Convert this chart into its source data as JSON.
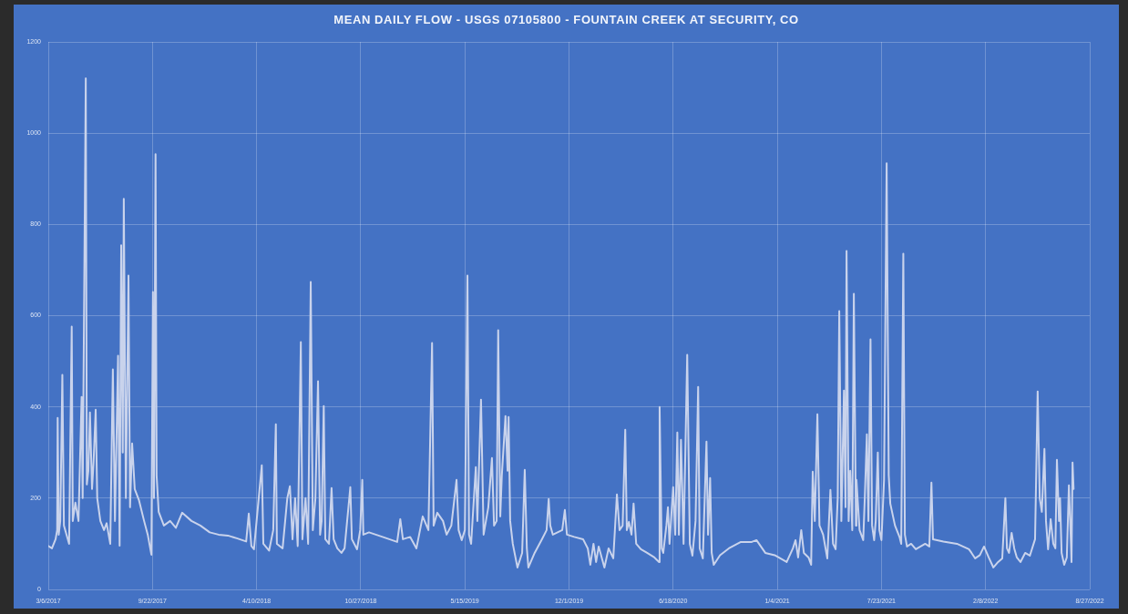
{
  "chart_data": {
    "type": "line",
    "title": "MEAN DAILY FLOW - USGS 07105800 - FOUNTAIN CREEK AT SECURITY, CO",
    "x": [
      "2017-03-06",
      "2017-03-13",
      "2017-03-20",
      "2017-03-23",
      "2017-03-24",
      "2017-03-26",
      "2017-03-29",
      "2017-04-02",
      "2017-04-05",
      "2017-04-10",
      "2017-04-15",
      "2017-04-20",
      "2017-04-22",
      "2017-04-27",
      "2017-05-03",
      "2017-05-09",
      "2017-05-11",
      "2017-05-17",
      "2017-05-19",
      "2017-05-22",
      "2017-05-25",
      "2017-05-29",
      "2017-06-01",
      "2017-06-05",
      "2017-06-08",
      "2017-06-14",
      "2017-06-21",
      "2017-06-26",
      "2017-07-03",
      "2017-07-08",
      "2017-07-12",
      "2017-07-18",
      "2017-07-21",
      "2017-07-24",
      "2017-07-27",
      "2017-07-29",
      "2017-08-02",
      "2017-08-07",
      "2017-08-10",
      "2017-08-14",
      "2017-08-19",
      "2017-08-27",
      "2017-09-06",
      "2017-09-13",
      "2017-09-20",
      "2017-09-23",
      "2017-09-25",
      "2017-09-28",
      "2017-09-30",
      "2017-10-04",
      "2017-10-14",
      "2017-10-26",
      "2017-11-06",
      "2017-11-18",
      "2017-12-06",
      "2017-12-23",
      "2018-01-10",
      "2018-01-27",
      "2018-02-14",
      "2018-03-03",
      "2018-03-21",
      "2018-03-26",
      "2018-03-31",
      "2018-04-05",
      "2018-04-20",
      "2018-04-23",
      "2018-05-04",
      "2018-05-12",
      "2018-05-17",
      "2018-05-19",
      "2018-05-30",
      "2018-06-08",
      "2018-06-13",
      "2018-06-18",
      "2018-06-23",
      "2018-06-28",
      "2018-07-04",
      "2018-07-07",
      "2018-07-13",
      "2018-07-18",
      "2018-07-23",
      "2018-07-27",
      "2018-08-01",
      "2018-08-06",
      "2018-08-10",
      "2018-08-13",
      "2018-08-17",
      "2018-08-20",
      "2018-08-27",
      "2018-09-01",
      "2018-09-05",
      "2018-09-12",
      "2018-09-20",
      "2018-09-26",
      "2018-10-07",
      "2018-10-10",
      "2018-10-20",
      "2018-10-26",
      "2018-10-30",
      "2018-11-01",
      "2018-11-12",
      "2018-12-08",
      "2019-01-05",
      "2019-01-11",
      "2019-01-16",
      "2019-01-30",
      "2019-02-11",
      "2019-02-23",
      "2019-03-06",
      "2019-03-13",
      "2019-03-16",
      "2019-03-23",
      "2019-04-03",
      "2019-04-10",
      "2019-04-19",
      "2019-04-29",
      "2019-05-03",
      "2019-05-09",
      "2019-05-15",
      "2019-05-20",
      "2019-05-23",
      "2019-05-27",
      "2019-06-05",
      "2019-06-08",
      "2019-06-15",
      "2019-06-20",
      "2019-06-29",
      "2019-07-06",
      "2019-07-10",
      "2019-07-15",
      "2019-07-18",
      "2019-07-22",
      "2019-07-25",
      "2019-08-01",
      "2019-08-05",
      "2019-08-07",
      "2019-08-10",
      "2019-08-15",
      "2019-08-24",
      "2019-09-02",
      "2019-09-07",
      "2019-09-11",
      "2019-09-14",
      "2019-09-26",
      "2019-10-10",
      "2019-10-19",
      "2019-10-23",
      "2019-10-26",
      "2019-10-31",
      "2019-11-18",
      "2019-11-23",
      "2019-11-27",
      "2019-12-11",
      "2019-12-28",
      "2020-01-06",
      "2020-01-11",
      "2020-01-17",
      "2020-01-22",
      "2020-01-27",
      "2020-02-07",
      "2020-02-15",
      "2020-02-24",
      "2020-03-02",
      "2020-03-07",
      "2020-03-13",
      "2020-03-18",
      "2020-03-21",
      "2020-03-25",
      "2020-03-30",
      "2020-04-03",
      "2020-04-08",
      "2020-04-17",
      "2020-04-29",
      "2020-05-13",
      "2020-05-22",
      "2020-05-23",
      "2020-05-27",
      "2020-05-30",
      "2020-06-05",
      "2020-06-08",
      "2020-06-11",
      "2020-06-18",
      "2020-06-22",
      "2020-06-26",
      "2020-06-29",
      "2020-07-03",
      "2020-07-08",
      "2020-07-15",
      "2020-07-20",
      "2020-07-25",
      "2020-07-31",
      "2020-08-05",
      "2020-08-08",
      "2020-08-14",
      "2020-08-21",
      "2020-08-24",
      "2020-08-28",
      "2020-08-31",
      "2020-09-04",
      "2020-09-16",
      "2020-10-03",
      "2020-10-26",
      "2020-11-16",
      "2020-11-25",
      "2020-12-12",
      "2020-12-30",
      "2021-01-22",
      "2021-02-03",
      "2021-02-08",
      "2021-02-13",
      "2021-02-19",
      "2021-02-24",
      "2021-03-05",
      "2021-03-10",
      "2021-03-13",
      "2021-03-17",
      "2021-03-22",
      "2021-03-26",
      "2021-04-02",
      "2021-04-10",
      "2021-04-16",
      "2021-04-21",
      "2021-04-26",
      "2021-04-30",
      "2021-05-03",
      "2021-05-07",
      "2021-05-12",
      "2021-05-15",
      "2021-05-17",
      "2021-05-21",
      "2021-05-24",
      "2021-05-28",
      "2021-05-31",
      "2021-06-04",
      "2021-06-05",
      "2021-06-11",
      "2021-06-18",
      "2021-06-21",
      "2021-06-25",
      "2021-06-28",
      "2021-07-02",
      "2021-07-05",
      "2021-07-09",
      "2021-07-12",
      "2021-07-16",
      "2021-07-19",
      "2021-07-23",
      "2021-07-28",
      "2021-08-02",
      "2021-08-06",
      "2021-08-09",
      "2021-08-18",
      "2021-08-27",
      "2021-08-30",
      "2021-09-03",
      "2021-09-06",
      "2021-09-10",
      "2021-09-18",
      "2021-09-27",
      "2021-10-06",
      "2021-10-15",
      "2021-10-23",
      "2021-10-27",
      "2021-10-30",
      "2021-11-19",
      "2021-12-15",
      "2022-01-07",
      "2022-01-12",
      "2022-01-19",
      "2022-01-28",
      "2022-02-05",
      "2022-02-14",
      "2022-02-23",
      "2022-03-04",
      "2022-03-12",
      "2022-03-18",
      "2022-03-21",
      "2022-03-25",
      "2022-03-30",
      "2022-04-04",
      "2022-04-09",
      "2022-04-16",
      "2022-04-25",
      "2022-05-04",
      "2022-05-14",
      "2022-05-19",
      "2022-05-23",
      "2022-05-27",
      "2022-06-01",
      "2022-06-04",
      "2022-06-08",
      "2022-06-13",
      "2022-06-18",
      "2022-06-22",
      "2022-06-25",
      "2022-06-29",
      "2022-07-01",
      "2022-07-04",
      "2022-07-09",
      "2022-07-14",
      "2022-07-18",
      "2022-07-22",
      "2022-07-23",
      "2022-07-25",
      "2022-07-27"
    ],
    "values": [
      95,
      90,
      110,
      130,
      376,
      120,
      150,
      470,
      140,
      120,
      100,
      576,
      150,
      190,
      150,
      422,
      200,
      1120,
      230,
      260,
      388,
      220,
      280,
      394,
      200,
      150,
      130,
      145,
      100,
      482,
      150,
      512,
      96,
      754,
      300,
      856,
      200,
      688,
      180,
      320,
      220,
      196,
      150,
      120,
      76,
      652,
      200,
      954,
      250,
      170,
      140,
      150,
      135,
      168,
      150,
      140,
      125,
      120,
      118,
      112,
      105,
      166,
      95,
      88,
      272,
      100,
      85,
      130,
      362,
      100,
      90,
      200,
      226,
      110,
      200,
      95,
      542,
      110,
      200,
      100,
      674,
      130,
      200,
      456,
      120,
      150,
      402,
      110,
      100,
      222,
      110,
      90,
      80,
      90,
      224,
      110,
      88,
      130,
      240,
      120,
      125,
      115,
      104,
      154,
      110,
      115,
      90,
      160,
      130,
      540,
      140,
      168,
      150,
      120,
      140,
      240,
      130,
      108,
      130,
      688,
      120,
      100,
      268,
      150,
      416,
      120,
      180,
      288,
      140,
      150,
      568,
      160,
      250,
      380,
      260,
      378,
      150,
      100,
      48,
      80,
      262,
      90,
      48,
      80,
      110,
      130,
      198,
      140,
      120,
      130,
      174,
      120,
      115,
      110,
      90,
      54,
      100,
      60,
      94,
      48,
      90,
      68,
      208,
      130,
      140,
      350,
      130,
      148,
      120,
      188,
      100,
      88,
      80,
      70,
      60,
      400,
      90,
      80,
      140,
      180,
      100,
      224,
      120,
      344,
      120,
      328,
      100,
      514,
      100,
      74,
      150,
      444,
      90,
      68,
      324,
      120,
      244,
      80,
      54,
      75,
      90,
      104,
      104,
      108,
      80,
      75,
      60,
      90,
      108,
      70,
      130,
      80,
      70,
      54,
      258,
      150,
      384,
      140,
      120,
      68,
      218,
      100,
      88,
      200,
      610,
      150,
      436,
      180,
      742,
      150,
      260,
      130,
      648,
      140,
      240,
      130,
      108,
      200,
      340,
      150,
      548,
      140,
      108,
      150,
      300,
      130,
      108,
      240,
      934,
      250,
      188,
      140,
      114,
      100,
      736,
      120,
      94,
      100,
      88,
      94,
      100,
      94,
      234,
      110,
      105,
      100,
      88,
      80,
      68,
      75,
      94,
      70,
      48,
      60,
      68,
      200,
      90,
      80,
      124,
      90,
      70,
      60,
      80,
      74,
      110,
      434,
      200,
      170,
      308,
      150,
      88,
      154,
      100,
      90,
      284,
      150,
      200,
      80,
      54,
      70,
      228,
      100,
      60,
      278,
      220
    ],
    "color": "#c9d3ec",
    "xlim": [
      "2017-03-06",
      "2022-08-27"
    ],
    "xticks": [
      {
        "value": "2017-03-06",
        "label": "3/6/2017"
      },
      {
        "value": "2017-09-22",
        "label": "9/22/2017"
      },
      {
        "value": "2018-04-10",
        "label": "4/10/2018"
      },
      {
        "value": "2018-10-27",
        "label": "10/27/2018"
      },
      {
        "value": "2019-05-15",
        "label": "5/15/2019"
      },
      {
        "value": "2019-12-01",
        "label": "12/1/2019"
      },
      {
        "value": "2020-06-18",
        "label": "6/18/2020"
      },
      {
        "value": "2021-01-04",
        "label": "1/4/2021"
      },
      {
        "value": "2021-07-23",
        "label": "7/23/2021"
      },
      {
        "value": "2022-02-08",
        "label": "2/8/2022"
      },
      {
        "value": "2022-08-27",
        "label": "8/27/2022"
      }
    ],
    "ylim": [
      0,
      1200
    ],
    "yticks": [
      0,
      200,
      400,
      600,
      800,
      1000,
      1200
    ],
    "grid": true
  }
}
